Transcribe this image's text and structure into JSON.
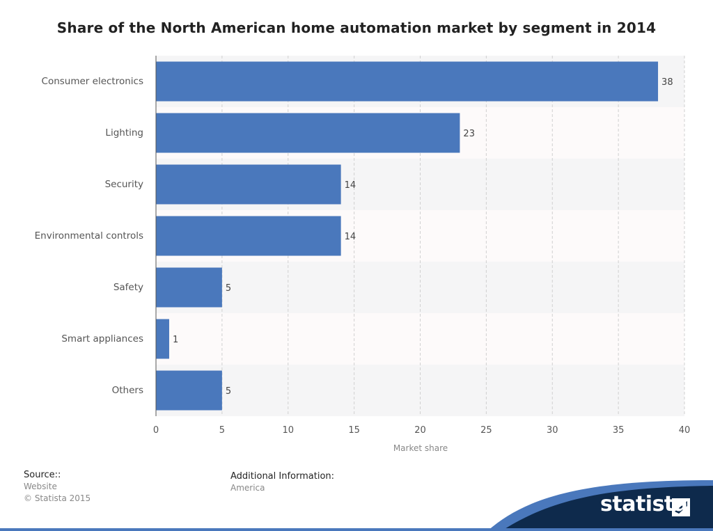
{
  "header": {
    "title": "Share of the North American home automation market by segment in 2014"
  },
  "chart_data": {
    "type": "bar",
    "orientation": "horizontal",
    "categories": [
      "Consumer electronics",
      "Lighting",
      "Security",
      "Environmental controls",
      "Safety",
      "Smart appliances",
      "Others"
    ],
    "values": [
      38,
      23,
      14,
      14,
      5,
      1,
      5
    ],
    "data_labels": [
      "38",
      "23",
      "14",
      "14",
      "5",
      "1",
      "5"
    ],
    "title": "Share of the North American home automation market by segment in 2014",
    "xlabel": "Market share",
    "ylabel": "",
    "xlim": [
      0,
      40
    ],
    "xticks": [
      "0",
      "5",
      "10",
      "15",
      "20",
      "25",
      "30",
      "35",
      "40"
    ],
    "grid": true,
    "legend": "none",
    "colors": {
      "bar": "#4a78bc",
      "band_even": "#f5f5f6",
      "band_odd": "#fdfafa",
      "grid": "#d0d0d0"
    }
  },
  "footer": {
    "source_heading": "Source::",
    "source_lines": [
      "Website",
      "© Statista 2015"
    ],
    "additional_heading": "Additional Information:",
    "additional_lines": [
      "America"
    ],
    "brand": "statista",
    "brand_color": "#0e2a4c",
    "accent_color": "#4a78bc"
  }
}
